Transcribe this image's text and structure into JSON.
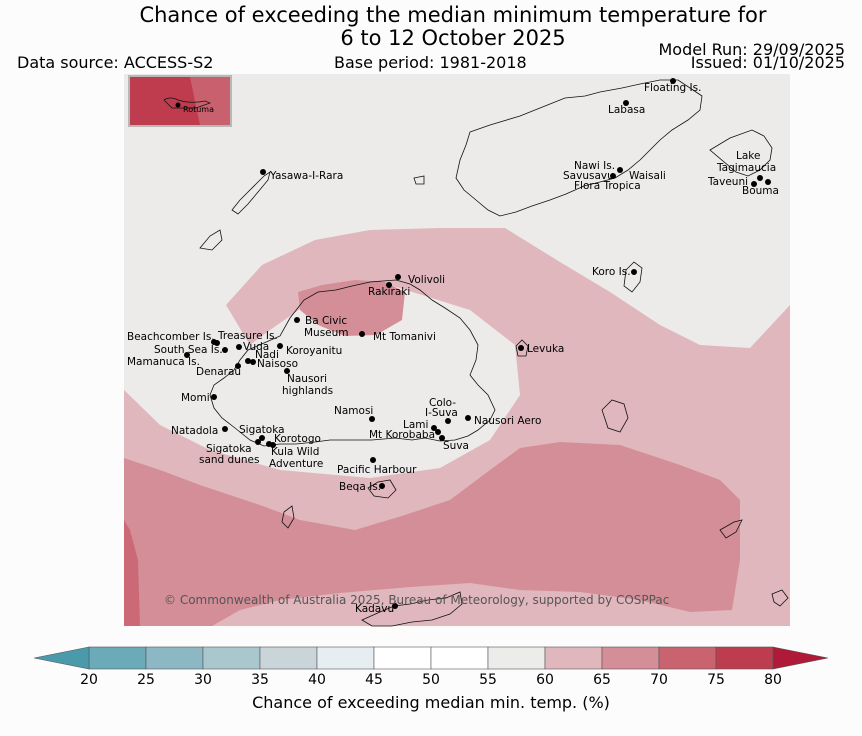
{
  "header": {
    "title_line1": "Chance of exceeding the median minimum temperature for",
    "title_line2": "6 to 12 October 2025",
    "data_source": "Data source: ACCESS-S2",
    "base_period": "Base period: 1981-2018",
    "model_run": "Model Run: 29/09/2025",
    "issued": "Issued: 01/10/2025"
  },
  "map": {
    "copyright": "© Commonwealth of Australia 2025, Bureau of Meteorology, supported by COSPPac",
    "inset_label": "Rotuma",
    "places": [
      "Floating Is.",
      "Labasa",
      "Nawi Is.",
      "Savusavu",
      "Waisali",
      "Flora Tropica",
      "Lake",
      "Tagimaucia",
      "Taveuni",
      "Bouma",
      "Yasawa-I-Rara",
      "Koro Is.",
      "Volivoli",
      "Rakiraki",
      "Ba Civic",
      "Museum",
      "Mt Tomanivi",
      "Levuka",
      "Beachcomber Is.",
      "Treasure Is.",
      "South Sea Is.",
      "Vuda",
      "Koroyanitu",
      "Nadi",
      "Mamanuca Is.",
      "Naisoso",
      "Denarau",
      "Nausori",
      "highlands",
      "Momi",
      "Namosi",
      "Colo-",
      "I-Suva",
      "Nausori Aero",
      "Natadola",
      "Sigatoka",
      "Lami",
      "Korotogo",
      "Mt Korobaba",
      "Suva",
      "Kula Wild",
      "Adventure",
      "sand dunes",
      "Pacific Harbour",
      "Beqa Is.",
      "Kadavu"
    ]
  },
  "colors": {
    "c55_60": "#ecebea",
    "c60_65": "#e0b7bc",
    "c65_70": "#d48e97",
    "c70_75": "#cc6977",
    "c75_80": "#bf3c4e",
    "c80_up": "#ae1a38"
  },
  "colorbar": {
    "label": "Chance of exceeding median min. temp. (%)",
    "ticks": [
      "20",
      "25",
      "30",
      "35",
      "40",
      "45",
      "50",
      "55",
      "60",
      "65",
      "70",
      "75",
      "80"
    ],
    "colors": [
      "#6aaab9",
      "#8cb8c3",
      "#a9c8cd",
      "#cad5d9",
      "#e6eef1",
      "#ffffff",
      "#ffffff",
      "#ececeb",
      "#e0b7bc",
      "#d48e97",
      "#c8636f",
      "#bd3c4e"
    ],
    "low_color": "#4a9aac",
    "high_color": "#ae1a38"
  }
}
